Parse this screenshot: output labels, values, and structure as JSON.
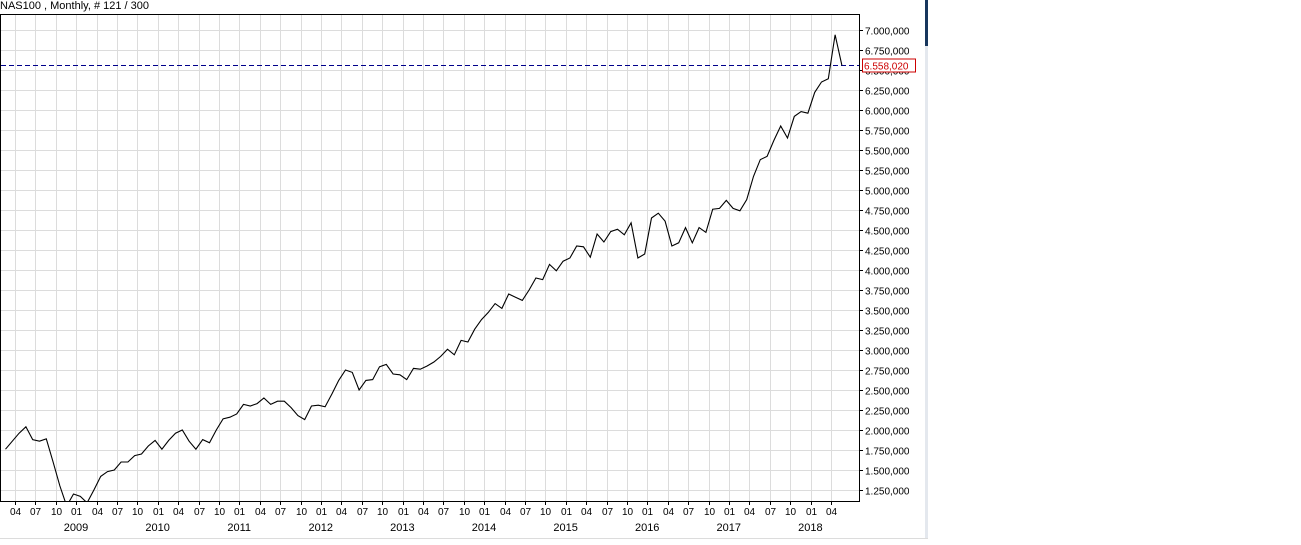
{
  "window": {
    "title": "NAS100 , Monthly, # 121 / 300"
  },
  "colors": {
    "grid": "#dcdcdc",
    "line": "#000000",
    "current_line": "#00008b",
    "current_label": "#cc0000",
    "accent_bar": "#17365d"
  },
  "chart_data": {
    "type": "line",
    "title": "",
    "xlabel": "",
    "ylabel": "",
    "ylim": [
      1200000,
      7200000
    ],
    "grid": true,
    "y_ticks": [
      "1.250,000",
      "1.500,000",
      "1.750,000",
      "2.000,000",
      "2.250,000",
      "2.500,000",
      "2.750,000",
      "3.000,000",
      "3.250,000",
      "3.500,000",
      "3.750,000",
      "4.000,000",
      "4.250,000",
      "4.500,000",
      "4.750,000",
      "5.000,000",
      "5.250,000",
      "5.500,000",
      "5.750,000",
      "6.000,000",
      "6.250,000",
      "6.500,000",
      "6.750,000",
      "7.000,000"
    ],
    "x_month_ticks": [
      "04",
      "07",
      "10",
      "01",
      "04",
      "07",
      "10",
      "01",
      "04",
      "07",
      "10",
      "01",
      "04",
      "07",
      "10",
      "01",
      "04",
      "07",
      "10",
      "01",
      "04",
      "07",
      "10",
      "01",
      "04",
      "07",
      "10",
      "01",
      "04",
      "07",
      "10",
      "01",
      "04",
      "07",
      "10",
      "01",
      "04",
      "07",
      "10",
      "01",
      "04"
    ],
    "x_year_labels": [
      "2009",
      "2010",
      "2011",
      "2012",
      "2013",
      "2014",
      "2015",
      "2016",
      "2017",
      "2018"
    ],
    "current_value": 6558020,
    "current_label": "6.558,020",
    "series": [
      {
        "values": [
          1760000,
          1860000,
          1960000,
          2040000,
          1880000,
          1860000,
          1890000,
          1600000,
          1300000,
          1050000,
          1200000,
          1170000,
          1090000,
          1250000,
          1420000,
          1480000,
          1500000,
          1600000,
          1600000,
          1680000,
          1700000,
          1800000,
          1870000,
          1760000,
          1870000,
          1960000,
          2000000,
          1860000,
          1760000,
          1880000,
          1840000,
          2000000,
          2140000,
          2160000,
          2200000,
          2320000,
          2300000,
          2330000,
          2400000,
          2320000,
          2360000,
          2360000,
          2280000,
          2180000,
          2130000,
          2300000,
          2310000,
          2290000,
          2450000,
          2620000,
          2750000,
          2720000,
          2500000,
          2620000,
          2630000,
          2790000,
          2820000,
          2700000,
          2690000,
          2630000,
          2770000,
          2760000,
          2800000,
          2850000,
          2920000,
          3010000,
          2940000,
          3120000,
          3100000,
          3260000,
          3380000,
          3470000,
          3580000,
          3520000,
          3700000,
          3660000,
          3620000,
          3750000,
          3900000,
          3880000,
          4070000,
          3990000,
          4110000,
          4150000,
          4300000,
          4290000,
          4160000,
          4450000,
          4350000,
          4480000,
          4510000,
          4440000,
          4590000,
          4150000,
          4200000,
          4650000,
          4710000,
          4610000,
          4300000,
          4340000,
          4530000,
          4340000,
          4530000,
          4470000,
          4760000,
          4770000,
          4870000,
          4770000,
          4740000,
          4880000,
          5170000,
          5380000,
          5420000,
          5620000,
          5800000,
          5650000,
          5920000,
          5980000,
          5960000,
          6220000,
          6350000,
          6390000,
          6940000,
          6558020
        ]
      }
    ]
  }
}
